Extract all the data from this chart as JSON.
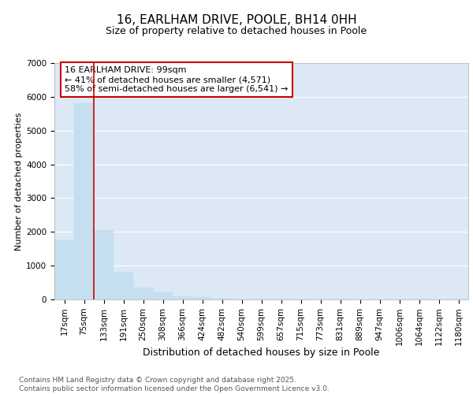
{
  "title1": "16, EARLHAM DRIVE, POOLE, BH14 0HH",
  "title2": "Size of property relative to detached houses in Poole",
  "xlabel": "Distribution of detached houses by size in Poole",
  "ylabel": "Number of detached properties",
  "bins": [
    "17sqm",
    "75sqm",
    "133sqm",
    "191sqm",
    "250sqm",
    "308sqm",
    "366sqm",
    "424sqm",
    "482sqm",
    "540sqm",
    "599sqm",
    "657sqm",
    "715sqm",
    "773sqm",
    "831sqm",
    "889sqm",
    "947sqm",
    "1006sqm",
    "1064sqm",
    "1122sqm",
    "1180sqm"
  ],
  "values": [
    1750,
    5800,
    2050,
    820,
    350,
    200,
    100,
    60,
    30,
    10,
    5,
    2,
    0,
    0,
    0,
    0,
    0,
    0,
    0,
    0,
    0
  ],
  "bar_color": "#c5dff0",
  "bar_edge_color": "#c5dff0",
  "red_line_bin": 1,
  "annotation_line1": "16 EARLHAM DRIVE: 99sqm",
  "annotation_line2": "← 41% of detached houses are smaller (4,571)",
  "annotation_line3": "58% of semi-detached houses are larger (6,541) →",
  "annotation_box_color": "#ffffff",
  "annotation_box_edge_color": "#cc0000",
  "ylim": [
    0,
    7000
  ],
  "yticks": [
    0,
    1000,
    2000,
    3000,
    4000,
    5000,
    6000,
    7000
  ],
  "bg_color": "#ffffff",
  "plot_bg_color": "#dce9f5",
  "grid_color": "#ffffff",
  "footer_text": "Contains HM Land Registry data © Crown copyright and database right 2025.\nContains public sector information licensed under the Open Government Licence v3.0.",
  "title1_fontsize": 11,
  "title2_fontsize": 9,
  "xlabel_fontsize": 9,
  "ylabel_fontsize": 8,
  "tick_fontsize": 7.5,
  "annotation_fontsize": 8,
  "footer_fontsize": 6.5
}
